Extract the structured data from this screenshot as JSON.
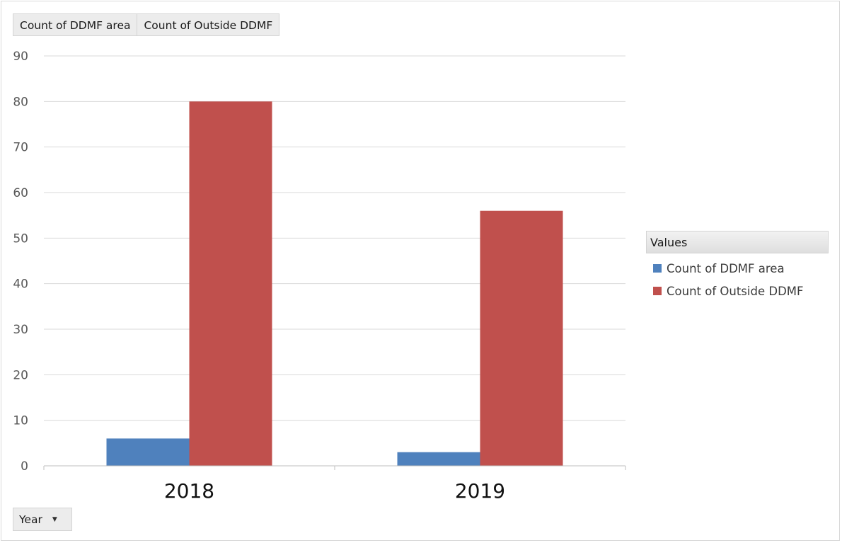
{
  "field_buttons": {
    "ddmf_label": "Count of DDMF area",
    "outside_label": "Count of Outside DDMF"
  },
  "axis_field": {
    "label": "Year",
    "dropdown_icon": "triangle-down-icon"
  },
  "legend": {
    "title": "Values",
    "items": [
      {
        "label": "Count of DDMF area",
        "color": "#4f81bd"
      },
      {
        "label": "Count of Outside DDMF",
        "color": "#c0504d"
      }
    ]
  },
  "chart_data": {
    "type": "bar",
    "categories": [
      "2018",
      "2019"
    ],
    "series": [
      {
        "name": "Count of DDMF area",
        "values": [
          6,
          3
        ],
        "color": "#4f81bd"
      },
      {
        "name": "Count of Outside DDMF",
        "values": [
          80,
          56
        ],
        "color": "#c0504d"
      }
    ],
    "ylim": [
      0,
      90
    ],
    "yticks": [
      0,
      10,
      20,
      30,
      40,
      50,
      60,
      70,
      80,
      90
    ],
    "grid": true,
    "legend_position": "right",
    "title": "",
    "xlabel": "",
    "ylabel": ""
  }
}
